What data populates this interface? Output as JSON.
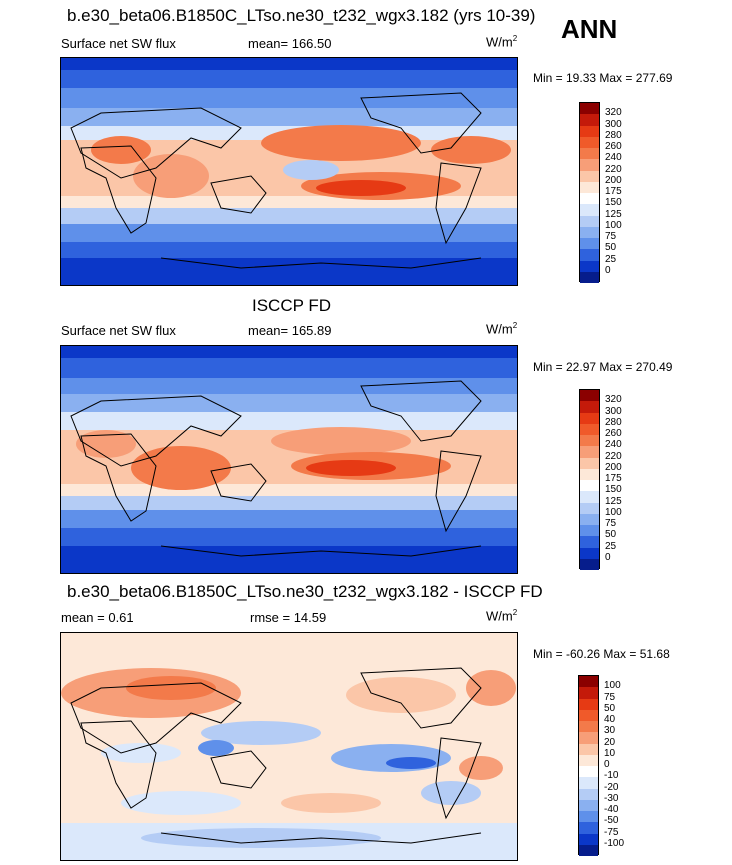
{
  "season": "ANN",
  "panels": [
    {
      "title": "b.e30_beta06.B1850C_LTso.ne30_t232_wgx3.182 (yrs 10-39)",
      "left_label": "Surface net SW flux",
      "center_label": "mean= 166.50",
      "units": "W/m",
      "units_exp": "2",
      "minmax": "Min =  19.33 Max = 277.69",
      "colorbar": {
        "labels": [
          "320",
          "300",
          "280",
          "260",
          "240",
          "220",
          "200",
          "175",
          "150",
          "125",
          "100",
          "75",
          "50",
          "25",
          "0"
        ],
        "colors": [
          "#8b0000",
          "#c41a0a",
          "#e63a14",
          "#f05a2a",
          "#f37a4a",
          "#f79e78",
          "#fbc6a8",
          "#fde8d8",
          "#ffffff",
          "#dbe8fb",
          "#b4ccf5",
          "#8ab0f0",
          "#5f90ea",
          "#2f62dd",
          "#0b37c8",
          "#061d8c"
        ]
      }
    },
    {
      "title": "ISCCP FD",
      "left_label": "Surface net SW flux",
      "center_label": "mean= 165.89",
      "units": "W/m",
      "units_exp": "2",
      "minmax": "Min =  22.97 Max = 270.49",
      "colorbar": {
        "labels": [
          "320",
          "300",
          "280",
          "260",
          "240",
          "220",
          "200",
          "175",
          "150",
          "125",
          "100",
          "75",
          "50",
          "25",
          "0"
        ],
        "colors": [
          "#8b0000",
          "#c41a0a",
          "#e63a14",
          "#f05a2a",
          "#f37a4a",
          "#f79e78",
          "#fbc6a8",
          "#fde8d8",
          "#ffffff",
          "#dbe8fb",
          "#b4ccf5",
          "#8ab0f0",
          "#5f90ea",
          "#2f62dd",
          "#0b37c8",
          "#061d8c"
        ]
      }
    },
    {
      "title": "b.e30_beta06.B1850C_LTso.ne30_t232_wgx3.182 - ISCCP FD",
      "left_label": "mean =   0.61",
      "center_label": "rmse =  14.59",
      "units": "W/m",
      "units_exp": "2",
      "minmax": "Min = -60.26 Max =  51.68",
      "colorbar": {
        "labels": [
          "100",
          "75",
          "50",
          "40",
          "30",
          "20",
          "10",
          "0",
          "-10",
          "-20",
          "-30",
          "-40",
          "-50",
          "-75",
          "-100"
        ],
        "colors": [
          "#8b0000",
          "#c41a0a",
          "#e63a14",
          "#f05a2a",
          "#f37a4a",
          "#f79e78",
          "#fbc6a8",
          "#fde8d8",
          "#ffffff",
          "#dbe8fb",
          "#b4ccf5",
          "#8ab0f0",
          "#5f90ea",
          "#2f62dd",
          "#0b37c8",
          "#061d8c"
        ]
      }
    }
  ]
}
